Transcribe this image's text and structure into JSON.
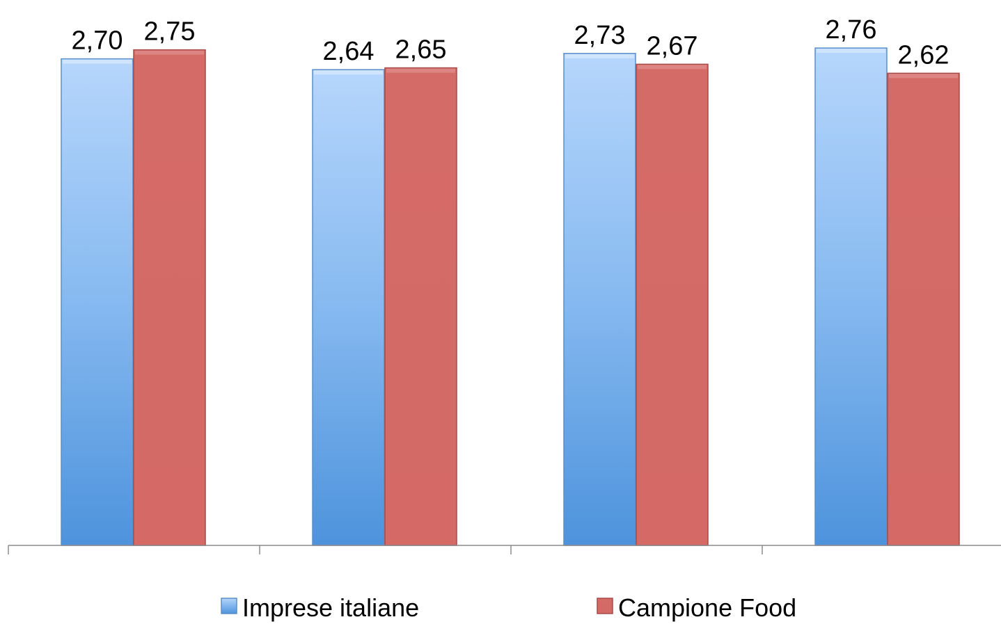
{
  "chart_data": {
    "type": "bar",
    "categories": [
      "",
      "",
      "",
      ""
    ],
    "series": [
      {
        "name": "Imprese italiane",
        "values": [
          2.7,
          2.64,
          2.73,
          2.76
        ],
        "labels": [
          "2,70",
          "2,64",
          "2,73",
          "2,76"
        ],
        "color": "#6fa8e8",
        "color_light": "#b3d4fb",
        "color_dark": "#4f90d9",
        "border": "#5a8fc8"
      },
      {
        "name": "Campione Food",
        "values": [
          2.75,
          2.65,
          2.67,
          2.62
        ],
        "labels": [
          "2,75",
          "2,65",
          "2,67",
          "2,62"
        ],
        "color": "#d46a66",
        "border": "#a84a47"
      }
    ],
    "ylim": [
      0,
      2.8
    ],
    "grid": false,
    "legend_position": "bottom"
  }
}
